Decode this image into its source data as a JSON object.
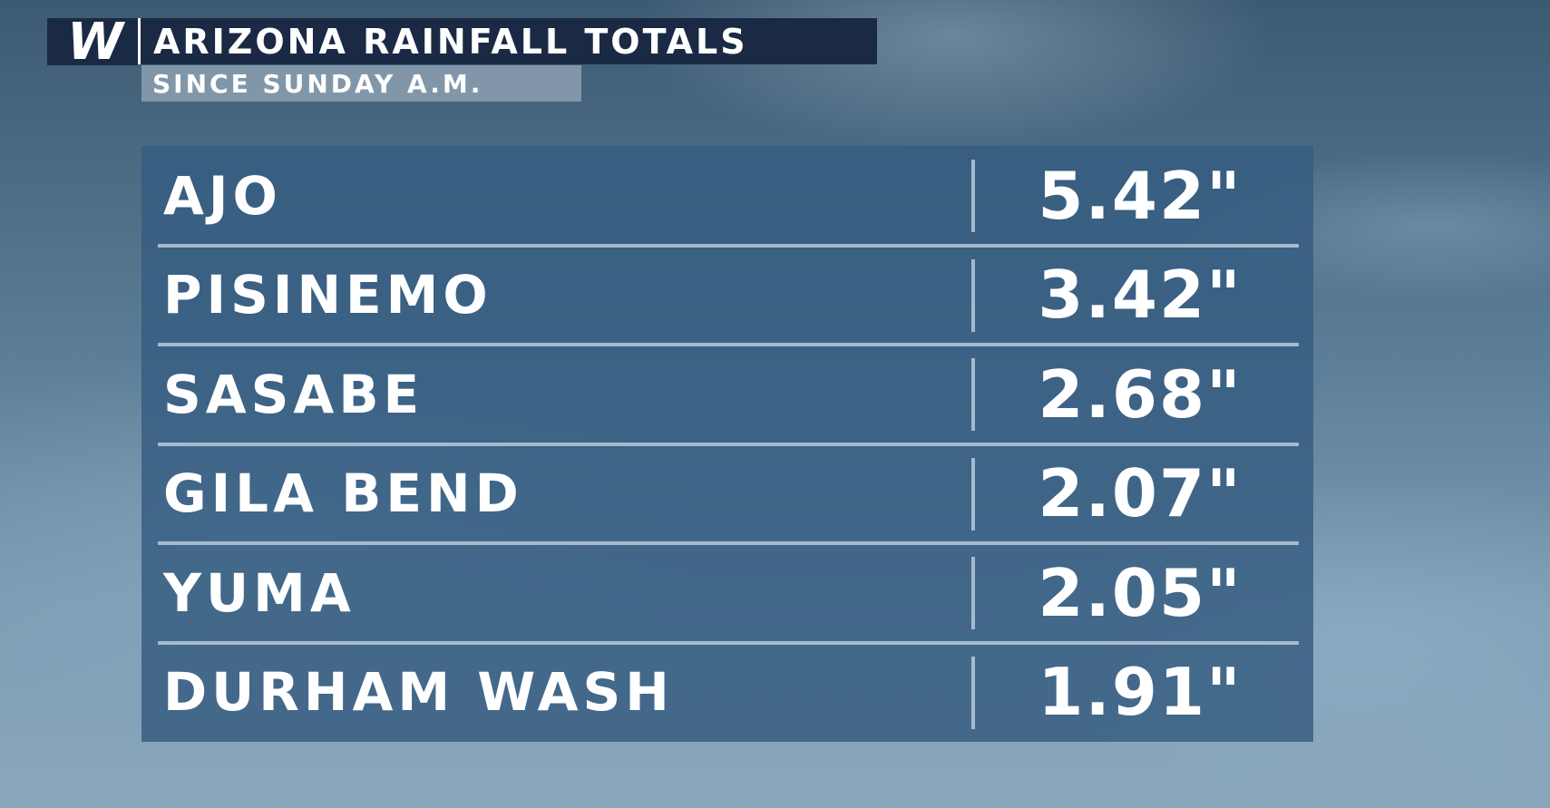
{
  "header": {
    "logo": "W",
    "title": "ARIZONA RAINFALL TOTALS",
    "subtitle": "SINCE SUNDAY A.M."
  },
  "table": {
    "rows": [
      [
        "AJO",
        "5.42\""
      ],
      [
        "PISINEMO",
        "3.42\""
      ],
      [
        "SASABE",
        "2.68\""
      ],
      [
        "GILA BEND",
        "2.07\""
      ],
      [
        "YUMA",
        "2.05\""
      ],
      [
        "DURHAM WASH",
        "1.91\""
      ]
    ]
  }
}
